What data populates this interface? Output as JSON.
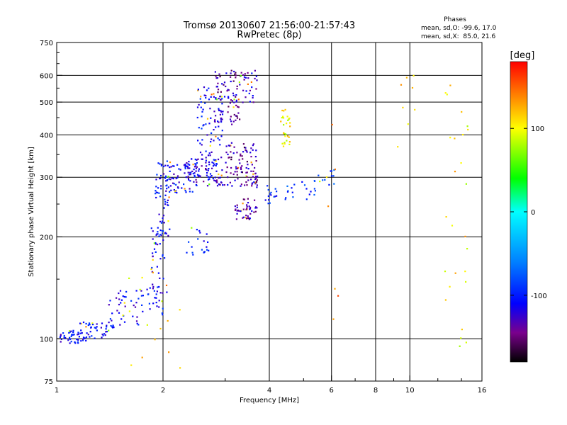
{
  "chart_data": {
    "type": "scatter",
    "title": "Tromsø 20130607 21:56:00-21:57:43",
    "subtitle": "RwPretec (8p)",
    "xlabel": "Frequency [MHz]",
    "ylabel": "Stationary phase Virtual Height [km]",
    "x_scale": "log",
    "y_scale": "log",
    "xlim": [
      1,
      16
    ],
    "ylim": [
      75,
      750
    ],
    "x_ticks": [
      {
        "value": 1,
        "label": "1"
      },
      {
        "value": 2,
        "label": "2"
      },
      {
        "value": 4,
        "label": "4"
      },
      {
        "value": 6,
        "label": "6"
      },
      {
        "value": 8,
        "label": "8"
      },
      {
        "value": 10,
        "label": "10"
      },
      {
        "value": 16,
        "label": "16"
      }
    ],
    "y_ticks": [
      {
        "value": 75,
        "label": "75"
      },
      {
        "value": 100,
        "label": "100"
      },
      {
        "value": 200,
        "label": "200"
      },
      {
        "value": 300,
        "label": "300"
      },
      {
        "value": 400,
        "label": "400"
      },
      {
        "value": 500,
        "label": "500"
      },
      {
        "value": 600,
        "label": "600"
      },
      {
        "value": 750,
        "label": "750"
      }
    ],
    "grid_x": [
      2,
      4,
      6,
      8,
      10
    ],
    "grid_y": [
      100,
      200,
      300,
      400,
      500,
      600
    ],
    "stats": {
      "heading": "Phases",
      "line1": "mean, sd,O: -99.6, 17.0",
      "line2": "mean, sd,X:  85.0, 21.6"
    },
    "colorbar": {
      "label": "[deg]",
      "range": [
        -180,
        180
      ],
      "ticks": [
        {
          "value": 100,
          "label": "100"
        },
        {
          "value": 0,
          "label": "0"
        },
        {
          "value": -100,
          "label": "-100"
        }
      ],
      "stops": [
        {
          "value": -180,
          "color": "#000000"
        },
        {
          "value": -145,
          "color": "#7a008c"
        },
        {
          "value": -110,
          "color": "#0000ff"
        },
        {
          "value": -60,
          "color": "#0080ff"
        },
        {
          "value": 0,
          "color": "#00ffff"
        },
        {
          "value": 40,
          "color": "#00ff00"
        },
        {
          "value": 100,
          "color": "#ffff00"
        },
        {
          "value": 140,
          "color": "#ff8000"
        },
        {
          "value": 180,
          "color": "#ff0000"
        }
      ]
    },
    "clusters": [
      {
        "f_range": [
          1.0,
          1.22
        ],
        "h_range": [
          97,
          106
        ],
        "phase": -110,
        "count": 45
      },
      {
        "f_range": [
          1.15,
          1.45
        ],
        "h_range": [
          100,
          112
        ],
        "phase": -108,
        "count": 45
      },
      {
        "f_range": [
          1.4,
          1.75
        ],
        "h_range": [
          108,
          140
        ],
        "phase": -108,
        "count": 40
      },
      {
        "f_range": [
          1.7,
          2.05
        ],
        "h_range": [
          115,
          145
        ],
        "phase": -105,
        "count": 30
      },
      {
        "f_range": [
          1.85,
          2.05
        ],
        "h_range": [
          140,
          215
        ],
        "phase": -110,
        "count": 35
      },
      {
        "f_range": [
          1.9,
          2.1
        ],
        "h_range": [
          200,
          340
        ],
        "phase": -105,
        "count": 60
      },
      {
        "f_range": [
          2.0,
          2.5
        ],
        "h_range": [
          270,
          330
        ],
        "phase": -110,
        "count": 70
      },
      {
        "f_range": [
          2.3,
          2.9
        ],
        "h_range": [
          290,
          340
        ],
        "phase": -115,
        "count": 60
      },
      {
        "f_range": [
          2.5,
          2.95
        ],
        "h_range": [
          330,
          560
        ],
        "phase": -110,
        "count": 90
      },
      {
        "f_range": [
          2.8,
          3.3
        ],
        "h_range": [
          430,
          620
        ],
        "phase": -135,
        "count": 80
      },
      {
        "f_range": [
          2.6,
          3.7
        ],
        "h_range": [
          280,
          320
        ],
        "phase": -130,
        "count": 60
      },
      {
        "f_range": [
          3.0,
          3.7
        ],
        "h_range": [
          290,
          380
        ],
        "phase": -140,
        "count": 70
      },
      {
        "f_range": [
          3.2,
          3.7
        ],
        "h_range": [
          225,
          260
        ],
        "phase": -135,
        "count": 45
      },
      {
        "f_range": [
          3.3,
          3.7
        ],
        "h_range": [
          480,
          620
        ],
        "phase": -120,
        "count": 30
      },
      {
        "f_range": [
          2.3,
          2.7
        ],
        "h_range": [
          175,
          215
        ],
        "phase": -100,
        "count": 20
      },
      {
        "f_range": [
          3.9,
          4.2
        ],
        "h_range": [
          250,
          285
        ],
        "phase": -100,
        "count": 15
      },
      {
        "f_range": [
          4.3,
          4.6
        ],
        "h_range": [
          370,
          480
        ],
        "phase": 100,
        "count": 30
      },
      {
        "f_range": [
          4.4,
          5.4
        ],
        "h_range": [
          255,
          295
        ],
        "phase": -90,
        "count": 20
      },
      {
        "f_range": [
          5.4,
          6.1
        ],
        "h_range": [
          285,
          320
        ],
        "phase": -90,
        "count": 12
      },
      {
        "f_range": [
          12.5,
          13.5
        ],
        "h_range": [
          120,
          600
        ],
        "phase": 110,
        "count": 12
      },
      {
        "f_range": [
          13.8,
          14.6
        ],
        "h_range": [
          85,
          600
        ],
        "phase": 100,
        "count": 14
      },
      {
        "f_range": [
          9.2,
          10.5
        ],
        "h_range": [
          300,
          600
        ],
        "phase": 120,
        "count": 8
      },
      {
        "f_range": [
          5.5,
          6.4
        ],
        "h_range": [
          110,
          500
        ],
        "phase": 140,
        "count": 6
      },
      {
        "f_range": [
          1.5,
          2.3
        ],
        "h_range": [
          80,
          160
        ],
        "phase": 110,
        "count": 15
      }
    ]
  }
}
